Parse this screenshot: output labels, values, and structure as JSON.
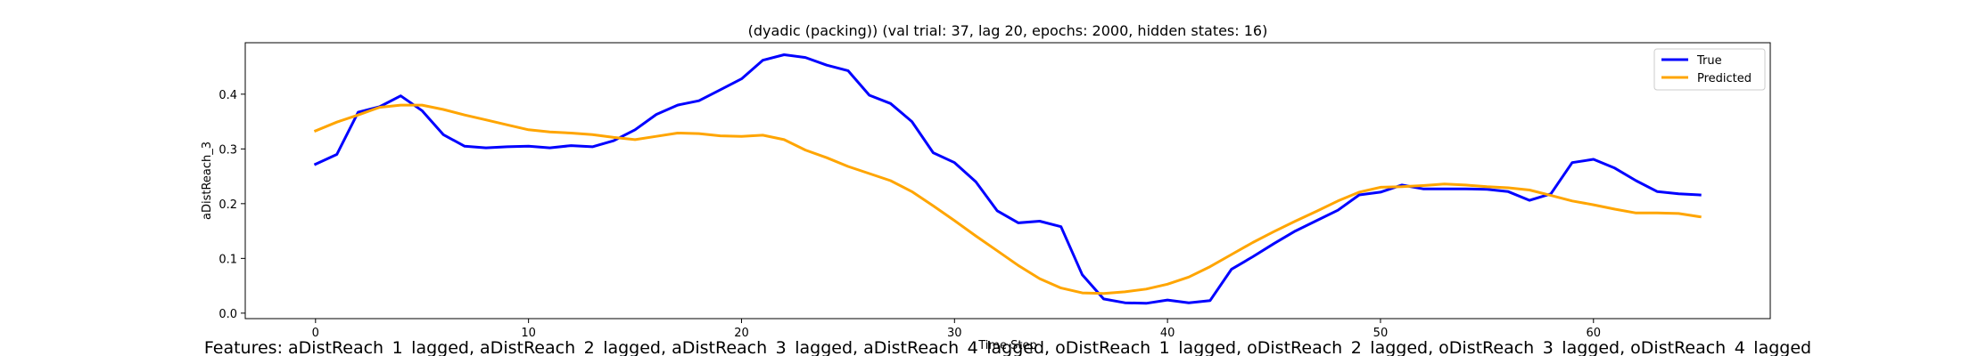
{
  "chart_data": {
    "type": "line",
    "title": "(dyadic (packing)) (val trial: 37, lag 20, epochs: 2000, hidden states: 16)",
    "xlabel": "Time Step",
    "ylabel": "aDistReach_3",
    "xlim": [
      -3.3,
      68.3
    ],
    "ylim": [
      -0.01,
      0.494
    ],
    "xticks": [
      0,
      10,
      20,
      30,
      40,
      50,
      60
    ],
    "yticks": [
      0.0,
      0.1,
      0.2,
      0.3,
      0.4
    ],
    "ytick_labels": [
      "0.0",
      "0.1",
      "0.2",
      "0.3",
      "0.4"
    ],
    "grid": false,
    "legend_position": "top-right",
    "series": [
      {
        "name": "True",
        "color": "#0000ff",
        "x": [
          0,
          1,
          2,
          3,
          4,
          5,
          6,
          7,
          8,
          9,
          10,
          11,
          12,
          13,
          14,
          15,
          16,
          17,
          18,
          19,
          20,
          21,
          22,
          23,
          24,
          25,
          26,
          27,
          28,
          29,
          30,
          31,
          32,
          33,
          34,
          35,
          36,
          37,
          38,
          39,
          40,
          41,
          42,
          43,
          44,
          45,
          46,
          47,
          48,
          49,
          50,
          51,
          52,
          53,
          54,
          55,
          56,
          57,
          58,
          59,
          60,
          61,
          62,
          63,
          64,
          65
        ],
        "values": [
          0.272,
          0.29,
          0.367,
          0.377,
          0.397,
          0.37,
          0.326,
          0.305,
          0.302,
          0.304,
          0.305,
          0.302,
          0.306,
          0.304,
          0.315,
          0.335,
          0.363,
          0.38,
          0.388,
          0.408,
          0.428,
          0.462,
          0.472,
          0.467,
          0.453,
          0.443,
          0.398,
          0.383,
          0.35,
          0.293,
          0.275,
          0.24,
          0.187,
          0.165,
          0.168,
          0.158,
          0.07,
          0.026,
          0.019,
          0.018,
          0.024,
          0.019,
          0.023,
          0.08,
          0.103,
          0.127,
          0.15,
          0.169,
          0.188,
          0.216,
          0.221,
          0.234,
          0.227,
          0.227,
          0.227,
          0.226,
          0.222,
          0.206,
          0.218,
          0.275,
          0.281,
          0.265,
          0.242,
          0.222,
          0.218,
          0.216
        ]
      },
      {
        "name": "Predicted",
        "color": "#ffa500",
        "x": [
          0,
          1,
          2,
          3,
          4,
          5,
          6,
          7,
          8,
          9,
          10,
          11,
          12,
          13,
          14,
          15,
          16,
          17,
          18,
          19,
          20,
          21,
          22,
          23,
          24,
          25,
          26,
          27,
          28,
          29,
          30,
          31,
          32,
          33,
          34,
          35,
          36,
          37,
          38,
          39,
          40,
          41,
          42,
          43,
          44,
          45,
          46,
          47,
          48,
          49,
          50,
          51,
          52,
          53,
          54,
          55,
          56,
          57,
          58,
          59,
          60,
          61,
          62,
          63,
          64,
          65
        ],
        "values": [
          0.333,
          0.349,
          0.362,
          0.376,
          0.38,
          0.38,
          0.372,
          0.362,
          0.353,
          0.344,
          0.335,
          0.331,
          0.329,
          0.326,
          0.321,
          0.317,
          0.323,
          0.329,
          0.328,
          0.324,
          0.323,
          0.325,
          0.317,
          0.298,
          0.284,
          0.268,
          0.255,
          0.242,
          0.222,
          0.196,
          0.169,
          0.141,
          0.114,
          0.087,
          0.063,
          0.046,
          0.037,
          0.036,
          0.039,
          0.044,
          0.053,
          0.066,
          0.085,
          0.107,
          0.129,
          0.149,
          0.168,
          0.186,
          0.205,
          0.221,
          0.23,
          0.231,
          0.233,
          0.236,
          0.234,
          0.231,
          0.229,
          0.225,
          0.215,
          0.205,
          0.198,
          0.19,
          0.183,
          0.183,
          0.182,
          0.176
        ]
      }
    ]
  },
  "footer_text": "Features: aDistReach_1_lagged, aDistReach_2_lagged, aDistReach_3_lagged, aDistReach_4_lagged, oDistReach_1_lagged, oDistReach_2_lagged, oDistReach_3_lagged, oDistReach_4_lagged"
}
